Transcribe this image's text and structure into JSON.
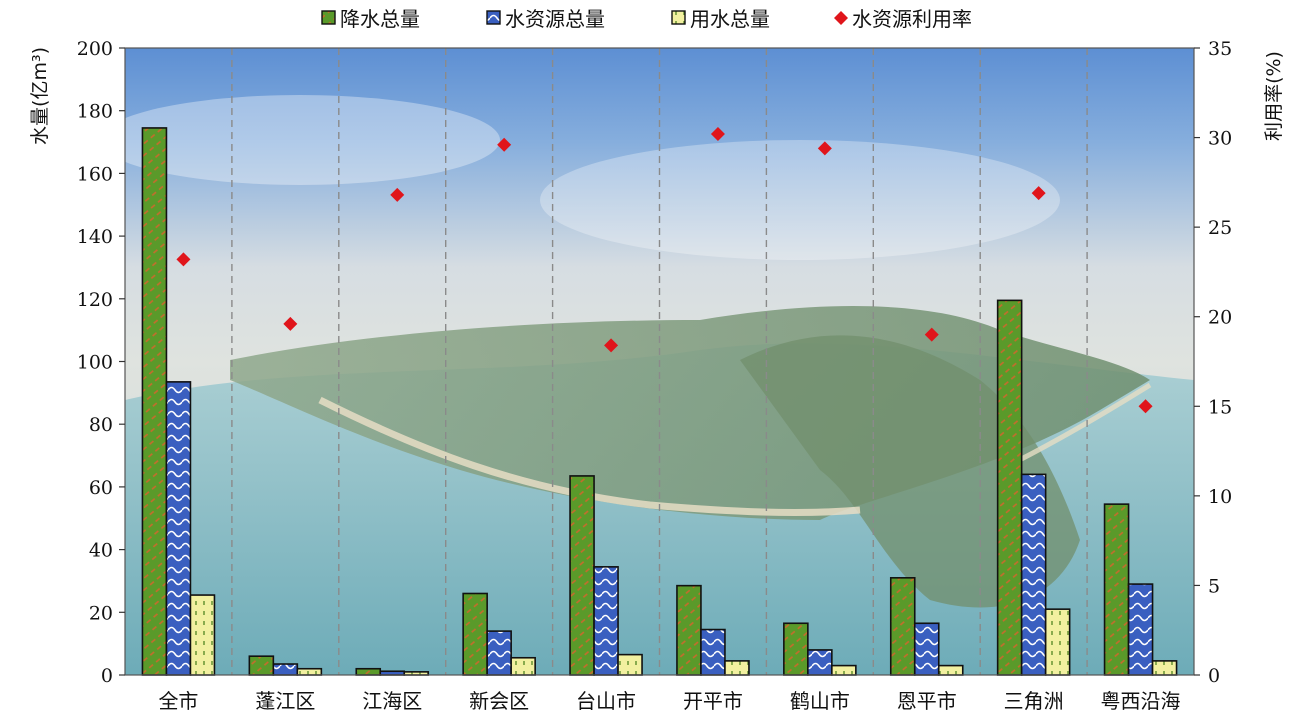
{
  "chart_data": {
    "type": "bar",
    "categories": [
      "全市",
      "蓬江区",
      "江海区",
      "新会区",
      "台山市",
      "开平市",
      "鹤山市",
      "恩平市",
      "三角洲",
      "粤西沿海"
    ],
    "series": [
      {
        "name": "降水总量",
        "axis": "left",
        "kind": "bar",
        "color": "#5a9a2a",
        "pattern": "diagonal-orange-hatch",
        "values": [
          174.5,
          6.0,
          2.0,
          26.0,
          63.5,
          28.5,
          16.5,
          31.0,
          119.5,
          54.5
        ]
      },
      {
        "name": "水资源总量",
        "axis": "left",
        "kind": "bar",
        "color": "#3a5fc0",
        "pattern": "white-wave",
        "values": [
          93.5,
          3.5,
          1.2,
          14.0,
          34.5,
          14.5,
          8.0,
          16.5,
          64.0,
          29.0
        ]
      },
      {
        "name": "用水总量",
        "axis": "left",
        "kind": "bar",
        "color": "#f2f0a0",
        "pattern": "green-dash",
        "values": [
          25.5,
          2.0,
          1.0,
          5.5,
          6.5,
          4.5,
          3.0,
          3.0,
          21.0,
          4.5
        ]
      },
      {
        "name": "水资源利用率",
        "axis": "right",
        "kind": "scatter",
        "color": "#e0151b",
        "marker": "diamond",
        "values": [
          23.2,
          19.6,
          26.8,
          29.6,
          18.4,
          30.2,
          29.4,
          19.0,
          26.9,
          15.0
        ]
      }
    ],
    "ylabel": "水量(亿m³)",
    "ylim": [
      0,
      200
    ],
    "yticks": [
      0,
      20,
      40,
      60,
      80,
      100,
      120,
      140,
      160,
      180,
      200
    ],
    "y2label": "利用率(%)",
    "y2lim": [
      0,
      35
    ],
    "y2ticks": [
      0,
      5,
      10,
      15,
      20,
      25,
      30,
      35
    ],
    "grid": "vertical dashed separators",
    "legend_position": "top-center",
    "background": "aerial coastal landscape photo"
  }
}
